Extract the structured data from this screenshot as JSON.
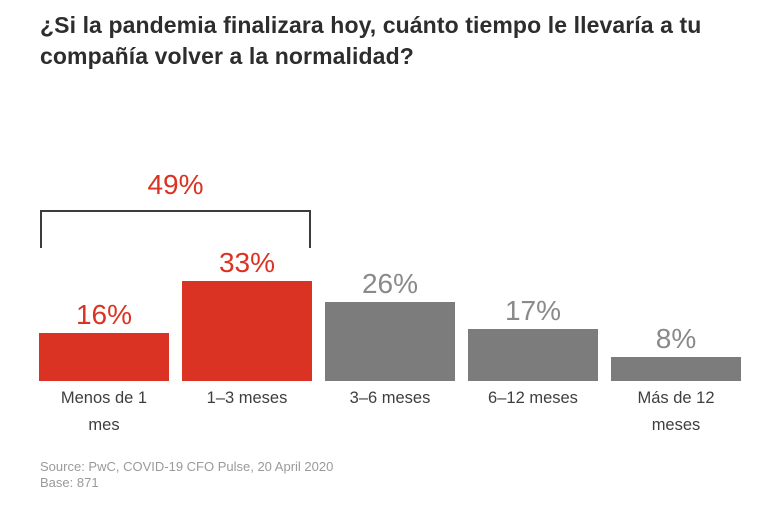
{
  "page": {
    "title_line1": "¿Si la pandemia finalizara hoy, cuánto tiempo le llevaría a tu",
    "title_line2": "compañía volver a la normalidad?",
    "source_line1": "Source: PwC, COVID-19 CFO Pulse, 20 April 2020",
    "source_line2": "Base: 871"
  },
  "colors": {
    "highlight": "#db3323",
    "highlight_label": "#db3323",
    "neutral": "#7c7c7c",
    "neutral_label": "#8a8a8a",
    "bracket": "#3c3c3c",
    "title_text": "#2d2d2d",
    "category_text": "#3e3e3e",
    "source_text": "#9a9a9a"
  },
  "chart_data": {
    "type": "bar",
    "title": "¿Si la pandemia finalizara hoy, cuánto tiempo le llevaría a tu compañía volver a la normalidad?",
    "categories": [
      "Menos de 1 mes",
      "1–3 meses",
      "3–6 meses",
      "6–12 meses",
      "Más de 12 meses"
    ],
    "values": [
      16,
      33,
      26,
      17,
      8
    ],
    "data_labels": [
      "16%",
      "33%",
      "26%",
      "17%",
      "8%"
    ],
    "unit": "%",
    "series_color_keys": [
      "highlight",
      "highlight",
      "neutral",
      "neutral",
      "neutral"
    ],
    "annotation": {
      "label": "49%",
      "span_category_indices": [
        0,
        1
      ]
    },
    "axes": "none",
    "grid": false,
    "legend": false,
    "source": "Source: PwC, COVID-19 CFO Pulse, 20 April 2020",
    "base": "Base: 871"
  }
}
